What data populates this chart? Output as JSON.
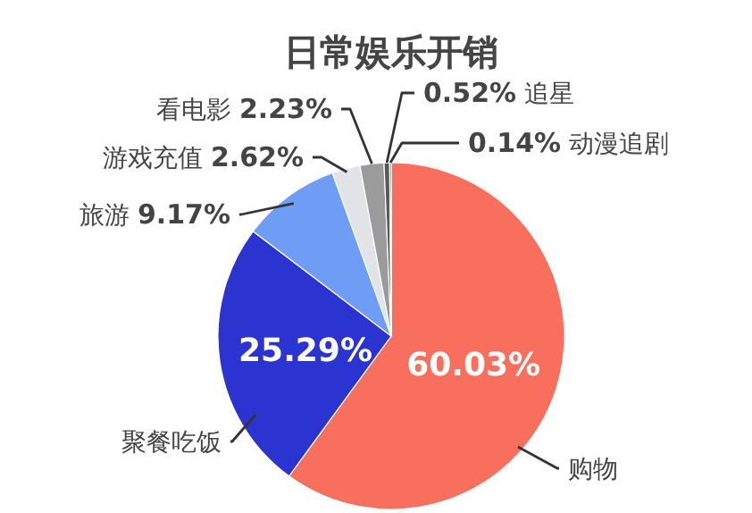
{
  "chart_data": {
    "type": "pie",
    "title": "日常娱乐开销",
    "categories": [
      "购物",
      "聚餐吃饭",
      "旅游",
      "游戏充值",
      "看电影",
      "追星",
      "动漫追剧"
    ],
    "values": [
      60.03,
      25.29,
      9.17,
      2.62,
      2.23,
      0.52,
      0.14
    ],
    "colors": [
      "#f96f5d",
      "#2b33d0",
      "#6f9cf4",
      "#e2e3e7",
      "#9b9b9b",
      "#5a5a5a",
      "#2a2a2a"
    ],
    "value_labels": [
      "60.03%",
      "25.29%",
      "9.17%",
      "2.62%",
      "2.23%",
      "0.52%",
      "0.14%"
    ]
  }
}
